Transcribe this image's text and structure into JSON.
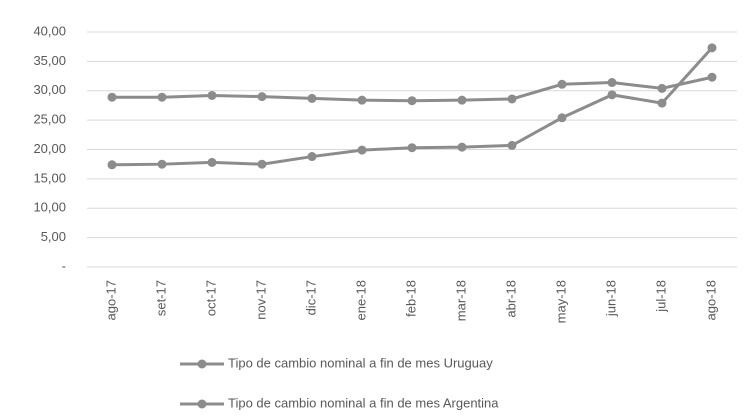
{
  "chart_data": {
    "type": "line",
    "categories": [
      "ago-17",
      "set-17",
      "oct-17",
      "nov-17",
      "dic-17",
      "ene-18",
      "feb-18",
      "mar-18",
      "abr-18",
      "may-18",
      "jun-18",
      "jul-18",
      "ago-18"
    ],
    "series": [
      {
        "name": "Tipo de cambio nominal a fin de mes Uruguay",
        "color": "#8c8c8c",
        "values": [
          28.9,
          28.9,
          29.2,
          29.0,
          28.7,
          28.4,
          28.3,
          28.4,
          28.6,
          31.1,
          31.4,
          30.4,
          32.3
        ]
      },
      {
        "name": "Tipo de cambio nominal a fin de mes Argentina",
        "color": "#8c8c8c",
        "values": [
          17.4,
          17.5,
          17.8,
          17.5,
          18.8,
          19.9,
          20.3,
          20.4,
          20.7,
          25.4,
          29.3,
          27.9,
          37.3
        ]
      }
    ],
    "ylim": [
      0,
      40
    ],
    "yticks": [
      {
        "value": 0,
        "label": "-"
      },
      {
        "value": 5,
        "label": "5,00"
      },
      {
        "value": 10,
        "label": "10,00"
      },
      {
        "value": 15,
        "label": "15,00"
      },
      {
        "value": 20,
        "label": "20,00"
      },
      {
        "value": 25,
        "label": "25,00"
      },
      {
        "value": 30,
        "label": "30,00"
      },
      {
        "value": 35,
        "label": "35,00"
      },
      {
        "value": 40,
        "label": "40,00"
      }
    ],
    "grid": true,
    "legend": "bottom"
  }
}
